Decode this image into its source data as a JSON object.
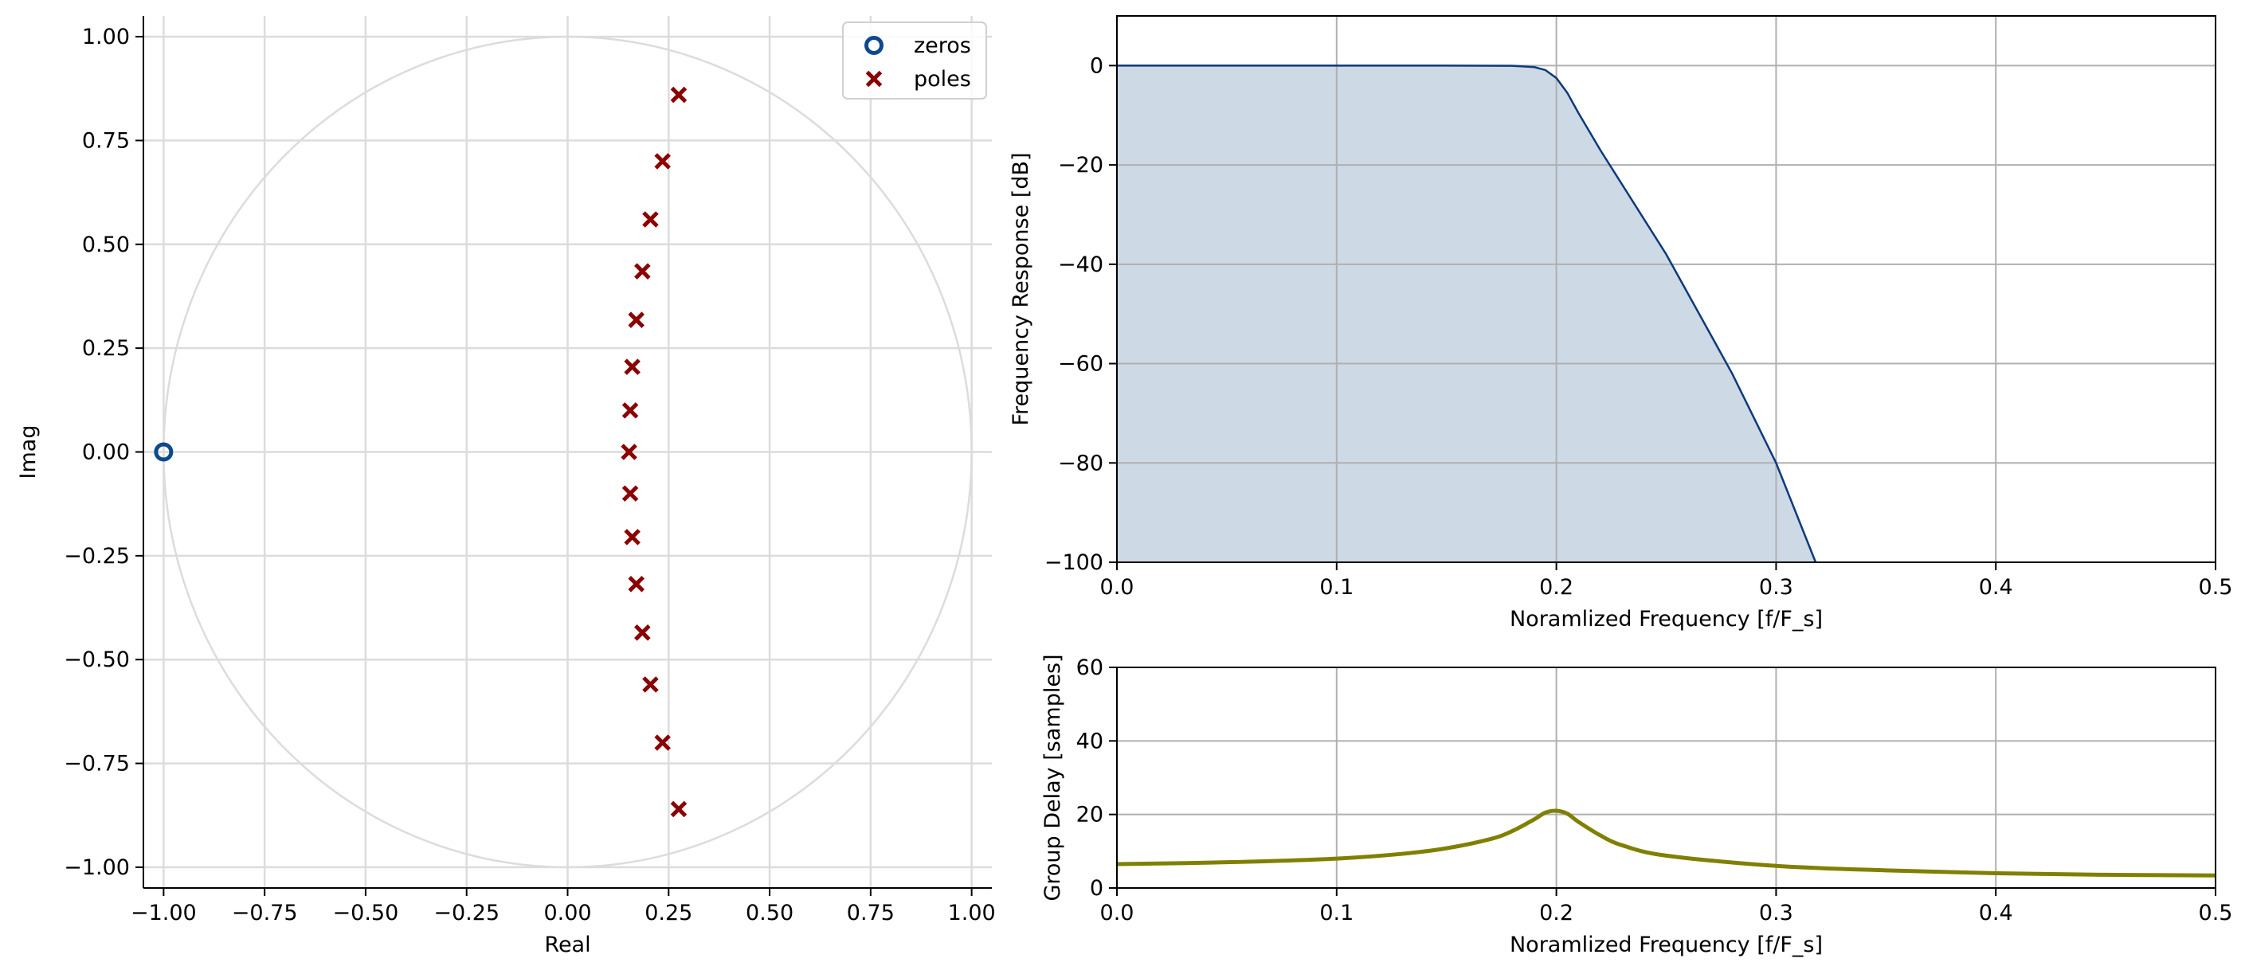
{
  "chart_data": [
    {
      "type": "scatter",
      "xlabel": "Real",
      "ylabel": "Imag",
      "xlim": [
        -1.05,
        1.05
      ],
      "ylim": [
        -1.05,
        1.05
      ],
      "xticks": [
        -1.0,
        -0.75,
        -0.5,
        -0.25,
        0.0,
        0.25,
        0.5,
        0.75,
        1.0
      ],
      "yticks": [
        -1.0,
        -0.75,
        -0.5,
        -0.25,
        0.0,
        0.25,
        0.5,
        0.75,
        1.0
      ],
      "xtick_labels": [
        "−1.00",
        "−0.75",
        "−0.50",
        "−0.25",
        "0.00",
        "0.25",
        "0.50",
        "0.75",
        "1.00"
      ],
      "ytick_labels": [
        "−1.00",
        "−0.75",
        "−0.50",
        "−0.25",
        "0.00",
        "0.25",
        "0.50",
        "0.75",
        "1.00"
      ],
      "grid": true,
      "unit_circle": true,
      "legend_position": "upper right",
      "series": [
        {
          "name": "zeros",
          "marker": "o",
          "color": "#0d4a8c",
          "points": [
            [
              -1.0,
              0.0
            ]
          ]
        },
        {
          "name": "poles",
          "marker": "x",
          "color": "#8b0000",
          "points": [
            [
              0.275,
              0.86
            ],
            [
              0.235,
              0.7
            ],
            [
              0.205,
              0.56
            ],
            [
              0.185,
              0.435
            ],
            [
              0.17,
              0.318
            ],
            [
              0.16,
              0.205
            ],
            [
              0.155,
              0.1
            ],
            [
              0.152,
              0.0
            ],
            [
              0.155,
              -0.1
            ],
            [
              0.16,
              -0.205
            ],
            [
              0.17,
              -0.318
            ],
            [
              0.185,
              -0.435
            ],
            [
              0.205,
              -0.56
            ],
            [
              0.235,
              -0.7
            ],
            [
              0.275,
              -0.86
            ]
          ]
        }
      ]
    },
    {
      "type": "area",
      "xlabel": "Noramlized Frequency [f/F_s]",
      "ylabel": "Frequency Response [dB]",
      "xlim": [
        0.0,
        0.5
      ],
      "ylim": [
        -100,
        10
      ],
      "xticks": [
        0.0,
        0.1,
        0.2,
        0.3,
        0.4,
        0.5
      ],
      "yticks": [
        0,
        -20,
        -40,
        -60,
        -80,
        -100
      ],
      "xtick_labels": [
        "0.0",
        "0.1",
        "0.2",
        "0.3",
        "0.4",
        "0.5"
      ],
      "ytick_labels": [
        "0",
        "−20",
        "−40",
        "−60",
        "−80",
        "−100"
      ],
      "grid": true,
      "line_color": "#0d3a7a",
      "fill_color": "#cdd9e5",
      "x": [
        0.0,
        0.05,
        0.1,
        0.15,
        0.18,
        0.19,
        0.195,
        0.2,
        0.205,
        0.21,
        0.22,
        0.25,
        0.28,
        0.3,
        0.318
      ],
      "y": [
        0.0,
        0.0,
        0.0,
        0.0,
        -0.05,
        -0.3,
        -0.9,
        -2.5,
        -5.5,
        -9.5,
        -17.0,
        -38.0,
        -62.0,
        -80.0,
        -100.0
      ]
    },
    {
      "type": "line",
      "xlabel": "Noramlized Frequency [f/F_s]",
      "ylabel": "Group Delay [samples]",
      "xlim": [
        0.0,
        0.5
      ],
      "ylim": [
        0,
        60
      ],
      "xticks": [
        0.0,
        0.1,
        0.2,
        0.3,
        0.4,
        0.5
      ],
      "yticks": [
        0,
        20,
        40,
        60
      ],
      "xtick_labels": [
        "0.0",
        "0.1",
        "0.2",
        "0.3",
        "0.4",
        "0.5"
      ],
      "ytick_labels": [
        "0",
        "20",
        "40",
        "60"
      ],
      "grid": true,
      "line_color": "#808000",
      "x": [
        0.0,
        0.05,
        0.1,
        0.13,
        0.15,
        0.17,
        0.18,
        0.19,
        0.195,
        0.2,
        0.205,
        0.21,
        0.22,
        0.23,
        0.25,
        0.3,
        0.35,
        0.4,
        0.45,
        0.5
      ],
      "y": [
        6.5,
        7.0,
        8.0,
        9.3,
        10.8,
        13.3,
        15.5,
        18.7,
        20.5,
        21.0,
        20.2,
        18.0,
        14.3,
        11.6,
        8.8,
        6.0,
        4.8,
        4.0,
        3.6,
        3.4
      ]
    }
  ]
}
